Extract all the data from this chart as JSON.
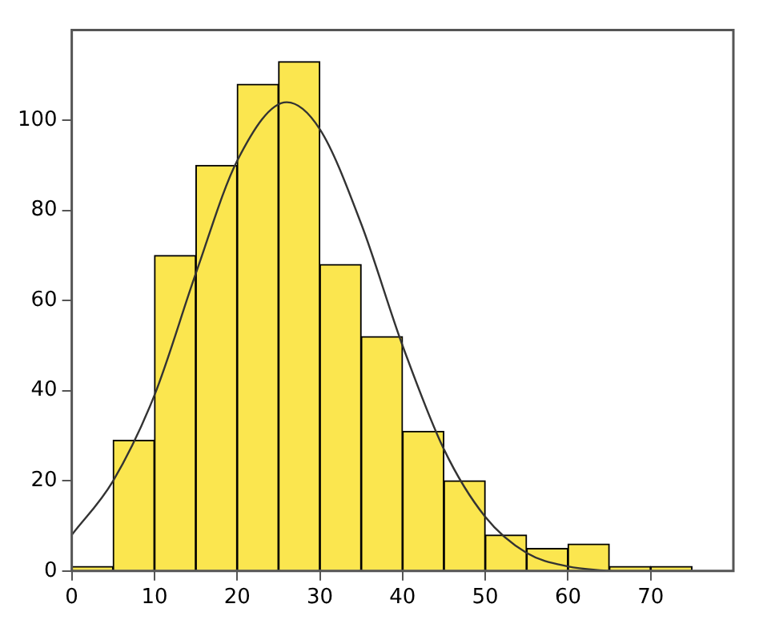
{
  "chart_data": {
    "type": "histogram",
    "bins": [
      0,
      5,
      10,
      15,
      20,
      25,
      30,
      35,
      40,
      45,
      50,
      55,
      60,
      65,
      70,
      75
    ],
    "values": [
      1,
      29,
      70,
      90,
      108,
      113,
      68,
      52,
      31,
      20,
      8,
      5,
      6,
      1,
      1
    ],
    "color": "#fbe64f",
    "series": [
      {
        "type": "line",
        "color": "#333333",
        "x": [
          0,
          5,
          10,
          15,
          20,
          26,
          30,
          35,
          40,
          45,
          50,
          55,
          60,
          65
        ],
        "values": [
          8,
          20,
          39,
          66,
          91,
          104,
          98,
          77,
          50,
          27,
          12,
          4,
          1,
          0
        ]
      }
    ],
    "xlim": [
      0,
      80
    ],
    "ylim": [
      0,
      120
    ],
    "xticks": [
      0,
      10,
      20,
      30,
      40,
      50,
      60,
      70
    ],
    "yticks": [
      0,
      20,
      40,
      60,
      80,
      100
    ],
    "grid": false,
    "legend": false
  }
}
